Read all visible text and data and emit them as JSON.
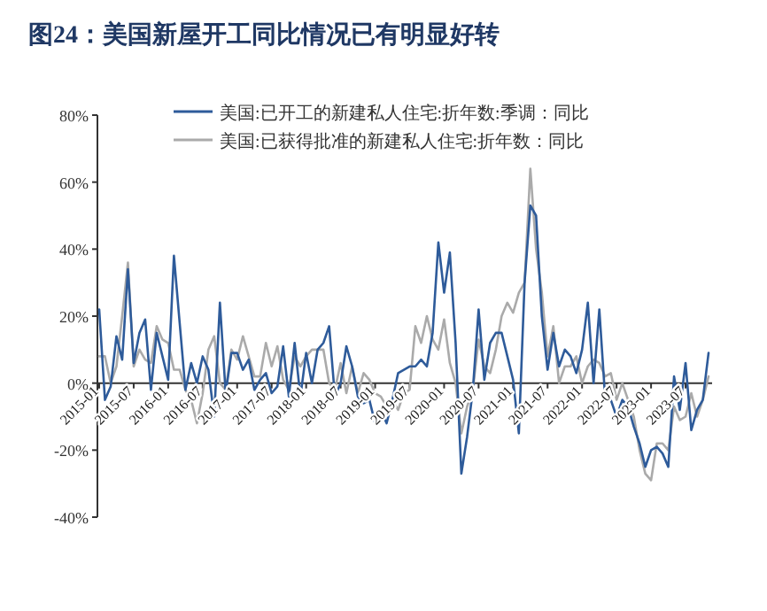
{
  "chart_data": {
    "type": "line",
    "title": "图24：美国新屋开工同比情况已有明显好转",
    "x": [
      "2015-01",
      "2015-02",
      "2015-03",
      "2015-04",
      "2015-05",
      "2015-06",
      "2015-07",
      "2015-08",
      "2015-09",
      "2015-10",
      "2015-11",
      "2015-12",
      "2016-01",
      "2016-02",
      "2016-03",
      "2016-04",
      "2016-05",
      "2016-06",
      "2016-07",
      "2016-08",
      "2016-09",
      "2016-10",
      "2016-11",
      "2016-12",
      "2017-01",
      "2017-02",
      "2017-03",
      "2017-04",
      "2017-05",
      "2017-06",
      "2017-07",
      "2017-08",
      "2017-09",
      "2017-10",
      "2017-11",
      "2017-12",
      "2018-01",
      "2018-02",
      "2018-03",
      "2018-04",
      "2018-05",
      "2018-06",
      "2018-07",
      "2018-08",
      "2018-09",
      "2018-10",
      "2018-11",
      "2018-12",
      "2019-01",
      "2019-02",
      "2019-03",
      "2019-04",
      "2019-05",
      "2019-06",
      "2019-07",
      "2019-08",
      "2019-09",
      "2019-10",
      "2019-11",
      "2019-12",
      "2020-01",
      "2020-02",
      "2020-03",
      "2020-04",
      "2020-05",
      "2020-06",
      "2020-07",
      "2020-08",
      "2020-09",
      "2020-10",
      "2020-11",
      "2020-12",
      "2021-01",
      "2021-02",
      "2021-03",
      "2021-04",
      "2021-05",
      "2021-06",
      "2021-07",
      "2021-08",
      "2021-09",
      "2021-10",
      "2021-11",
      "2021-12",
      "2022-01",
      "2022-02",
      "2022-03",
      "2022-04",
      "2022-05",
      "2022-06",
      "2022-07",
      "2022-08",
      "2022-09",
      "2022-10",
      "2022-11",
      "2022-12",
      "2023-01",
      "2023-02",
      "2023-03",
      "2023-04",
      "2023-05",
      "2023-06",
      "2023-07",
      "2023-08",
      "2023-09",
      "2023-10",
      "2023-11"
    ],
    "series": [
      {
        "name": "美国:已开工的新建私人住宅:折年数:季调：同比",
        "color": "#2e5b9a",
        "values": [
          22,
          -5,
          -1,
          14,
          7,
          34,
          6,
          15,
          19,
          -2,
          15,
          8,
          1,
          38,
          18,
          -2,
          6,
          0,
          8,
          4,
          -10,
          24,
          -3,
          9,
          9,
          4,
          7,
          -2,
          1,
          3,
          -3,
          -1,
          11,
          -4,
          12,
          -4,
          9,
          0,
          10,
          12,
          17,
          -4,
          0,
          11,
          5,
          -4,
          -6,
          -5,
          -12,
          -8,
          -12,
          -5,
          3,
          4,
          5,
          5,
          7,
          5,
          15,
          42,
          27,
          39,
          12,
          -27,
          -16,
          -2,
          22,
          1,
          12,
          15,
          15,
          8,
          1,
          -15,
          30,
          53,
          50,
          20,
          4,
          15,
          5,
          10,
          8,
          3,
          10,
          24,
          0,
          22,
          -4,
          -5,
          -10,
          -5,
          -7,
          -13,
          -18,
          -25,
          -20,
          -19,
          -21,
          -25,
          2,
          -8,
          6,
          -14,
          -8,
          -5,
          9
        ]
      },
      {
        "name": "美国:已获得批准的新建私人住宅:折年数：同比",
        "color": "#aaaaaa",
        "values": [
          8,
          8,
          0,
          5,
          20,
          36,
          5,
          10,
          7,
          6,
          17,
          13,
          12,
          4,
          4,
          -2,
          -5,
          -12,
          -3,
          10,
          14,
          0,
          -2,
          10,
          7,
          14,
          8,
          2,
          2,
          12,
          5,
          11,
          1,
          -2,
          8,
          5,
          8,
          10,
          10,
          10,
          0,
          -2,
          6,
          -3,
          5,
          -3,
          3,
          1,
          -3,
          -4,
          -7,
          -5,
          -8,
          -3,
          -2,
          17,
          12,
          20,
          13,
          10,
          19,
          6,
          0,
          -15,
          -7,
          -2,
          13,
          5,
          3,
          10,
          20,
          24,
          21,
          27,
          30,
          64,
          40,
          27,
          8,
          17,
          0,
          5,
          5,
          8,
          0,
          5,
          7,
          6,
          2,
          3,
          -5,
          0,
          -5,
          -10,
          -20,
          -27,
          -29,
          -18,
          -18,
          -20,
          -7,
          -11,
          -10,
          -3,
          -10,
          -5,
          2
        ]
      }
    ],
    "xlim": [
      "2015-01",
      "2023-11"
    ],
    "xticks": [
      {
        "value": "2015-01",
        "label": "2015-01"
      },
      {
        "value": "2015-07",
        "label": "2015-07"
      },
      {
        "value": "2016-01",
        "label": "2016-01"
      },
      {
        "value": "2016-07",
        "label": "2016-07"
      },
      {
        "value": "2017-01",
        "label": "2017-01"
      },
      {
        "value": "2017-07",
        "label": "2017-07"
      },
      {
        "value": "2018-01",
        "label": "2018-01"
      },
      {
        "value": "2018-07",
        "label": "2018-07"
      },
      {
        "value": "2019-01",
        "label": "2019-01"
      },
      {
        "value": "2019-07",
        "label": "2019-07"
      },
      {
        "value": "2020-01",
        "label": "2020-01"
      },
      {
        "value": "2020-07",
        "label": "2020-07"
      },
      {
        "value": "2021-01",
        "label": "2021-01"
      },
      {
        "value": "2021-07",
        "label": "2021-07"
      },
      {
        "value": "2022-01",
        "label": "2022-01"
      },
      {
        "value": "2022-07",
        "label": "2022-07"
      },
      {
        "value": "2023-01",
        "label": "2023-01"
      },
      {
        "value": "2023-07",
        "label": "2023-07"
      }
    ],
    "ylim": [
      -40,
      80
    ],
    "yticks": [
      {
        "value": -40,
        "label": "-40%"
      },
      {
        "value": -20,
        "label": "-20%"
      },
      {
        "value": 0,
        "label": "0%"
      },
      {
        "value": 20,
        "label": "20%"
      },
      {
        "value": 40,
        "label": "40%"
      },
      {
        "value": 60,
        "label": "60%"
      },
      {
        "value": 80,
        "label": "80%"
      }
    ],
    "grid": false,
    "legend": "top",
    "line_style": "solid",
    "marker": "none"
  }
}
